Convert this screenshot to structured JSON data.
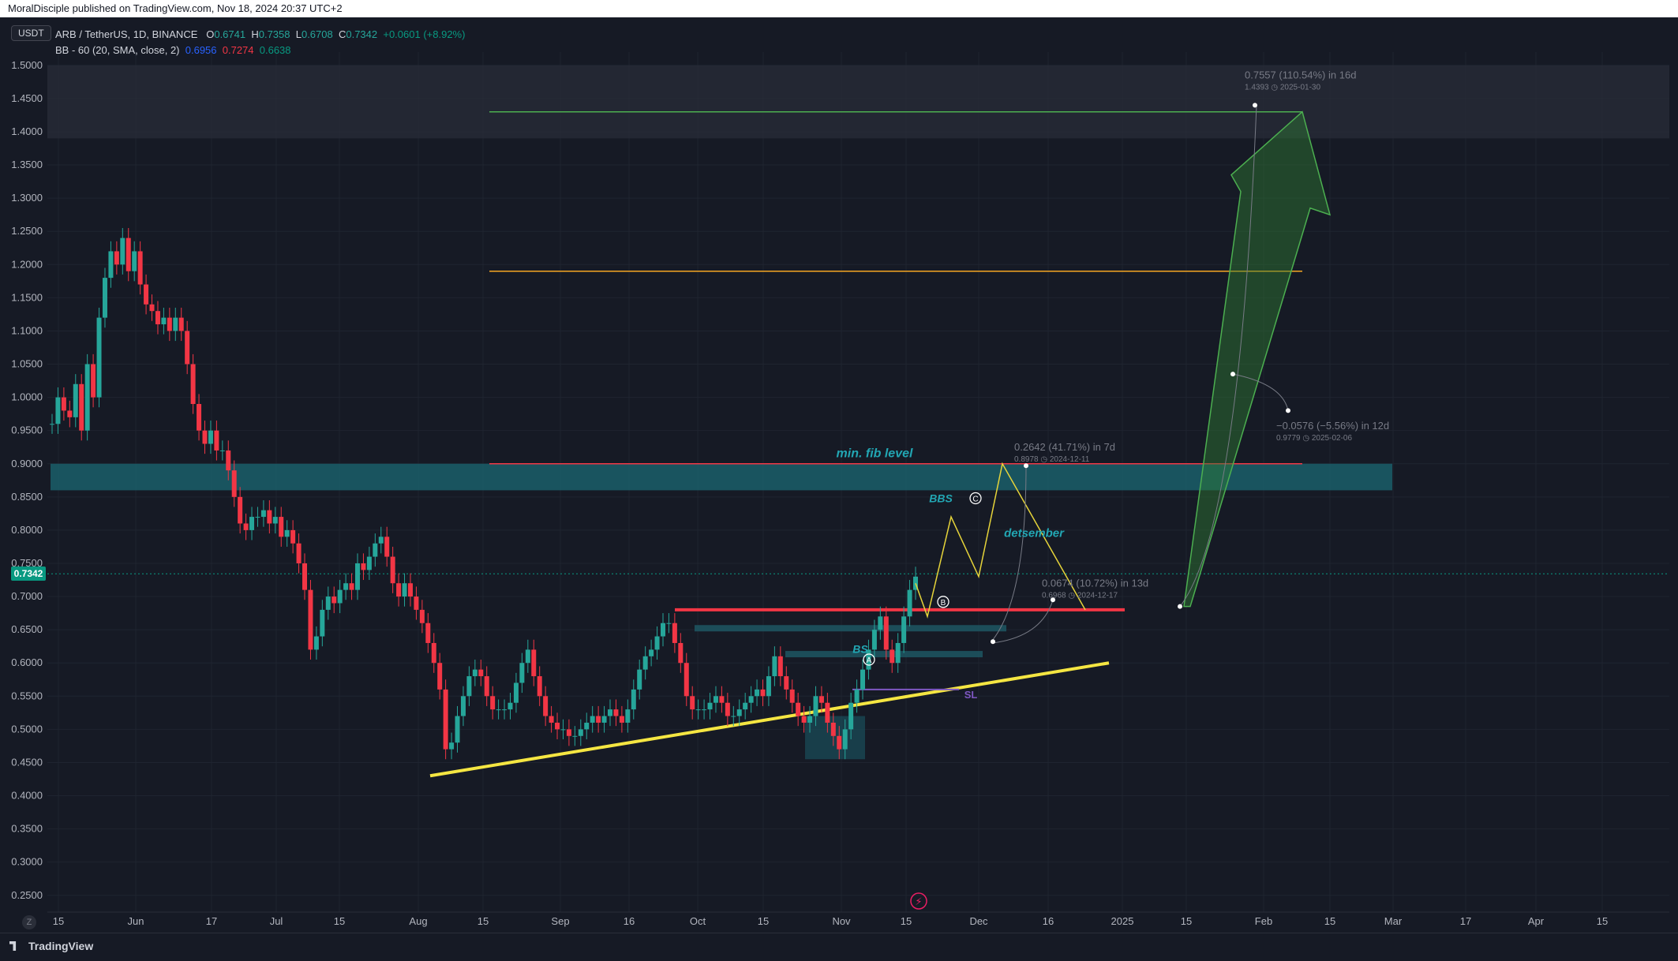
{
  "header": {
    "published": "MoralDisciple published on TradingView.com, Nov 18, 2024 20:37 UTC+2"
  },
  "currency_button": "USDT",
  "legend": {
    "symbol": "ARB / TetherUS, 1D, BINANCE",
    "o_label": "O",
    "o": "0.6741",
    "h_label": "H",
    "h": "0.7358",
    "l_label": "L",
    "l": "0.6708",
    "c_label": "C",
    "c": "0.7342",
    "change": "+0.0601 (+8.92%)",
    "bb_label": "BB - 60 (20, SMA, close, 2)",
    "bb_basis": "0.6956",
    "bb_upper": "0.7274",
    "bb_lower": "0.6638"
  },
  "current_price": "0.7342",
  "footer": {
    "brand": "TradingView",
    "z_label": "Z"
  },
  "colors": {
    "bg": "#161a25",
    "up": "#26a69a",
    "down": "#f23645",
    "fib_zone": "#1a5f6a",
    "yellow": "#f5e642",
    "green_arrow": "#4caf50"
  },
  "chart_data": {
    "type": "candlestick",
    "y_ticks": [
      "1.5000",
      "1.4500",
      "1.4000",
      "1.3500",
      "1.3000",
      "1.2500",
      "1.2000",
      "1.1500",
      "1.1000",
      "1.0500",
      "1.0000",
      "0.9500",
      "0.9000",
      "0.8500",
      "0.8000",
      "0.7500",
      "0.7000",
      "0.6500",
      "0.6000",
      "0.5500",
      "0.5000",
      "0.4500",
      "0.4000",
      "0.3500",
      "0.3000",
      "0.2500"
    ],
    "ylim": [
      0.22,
      1.52
    ],
    "x_ticks": [
      "15",
      "Jun",
      "17",
      "Jul",
      "15",
      "Aug",
      "15",
      "Sep",
      "16",
      "Oct",
      "15",
      "Nov",
      "15",
      "Dec",
      "16",
      "2025",
      "15",
      "Feb",
      "15",
      "Mar",
      "17",
      "Apr",
      "15"
    ],
    "price_path": [
      [
        0.96,
        1.0,
        0.98,
        0.97,
        1.02,
        0.95,
        1.05,
        1.0,
        1.12,
        1.18,
        1.22,
        1.2,
        1.24,
        1.19,
        1.22,
        1.17,
        1.14,
        1.13,
        1.11,
        1.12,
        1.1,
        1.12,
        1.1,
        1.05,
        0.99,
        0.95,
        0.93,
        0.95,
        0.92,
        0.92,
        0.89,
        0.85,
        0.81,
        0.8,
        0.82,
        0.82,
        0.83,
        0.81,
        0.82,
        0.79,
        0.8,
        0.78,
        0.75,
        0.71,
        0.62,
        0.64,
        0.68,
        0.7,
        0.69,
        0.71,
        0.72,
        0.71,
        0.75,
        0.74,
        0.76,
        0.78,
        0.79,
        0.76,
        0.72,
        0.7,
        0.72,
        0.7,
        0.68,
        0.66,
        0.63,
        0.6,
        0.56,
        0.47,
        0.48,
        0.52,
        0.55,
        0.58,
        0.59,
        0.58,
        0.55,
        0.53,
        0.53,
        0.53,
        0.54,
        0.57,
        0.6,
        0.62,
        0.58,
        0.55,
        0.52,
        0.51,
        0.5,
        0.5,
        0.49,
        0.49,
        0.5,
        0.51,
        0.52,
        0.51,
        0.52,
        0.53,
        0.52,
        0.51,
        0.53,
        0.56,
        0.59,
        0.61,
        0.62,
        0.64,
        0.66,
        0.66,
        0.63,
        0.6,
        0.55,
        0.53,
        0.53,
        0.53,
        0.54,
        0.55,
        0.54,
        0.52,
        0.52,
        0.53,
        0.54,
        0.55,
        0.56,
        0.55,
        0.58,
        0.61,
        0.58,
        0.56,
        0.54,
        0.52,
        0.51,
        0.52,
        0.55,
        0.54,
        0.51,
        0.49,
        0.47,
        0.5,
        0.54,
        0.56,
        0.59,
        0.62,
        0.65,
        0.67,
        0.62,
        0.6,
        0.63,
        0.67,
        0.71,
        0.73
      ]
    ],
    "horizontal_levels": [
      {
        "price": 1.43,
        "color": "#4caf50"
      },
      {
        "price": 1.19,
        "color": "#f5a623"
      },
      {
        "price": 0.9,
        "color": "#f23645"
      },
      {
        "price": 0.68,
        "color": "#f23645"
      }
    ],
    "annotations": [
      {
        "text": "min. fib level",
        "color": "#22a6b3"
      },
      {
        "text": "BBS",
        "color": "#22a6b3"
      },
      {
        "text": "detsember",
        "color": "#22a6b3"
      },
      {
        "text": "BS",
        "color": "#22a6b3"
      },
      {
        "text": "SL",
        "color": "#7e57c2"
      },
      {
        "text": "A"
      },
      {
        "text": "B"
      },
      {
        "text": "C"
      }
    ],
    "measurements": [
      {
        "line1": "0.7557 (110.54%) in 16d",
        "line2": "1.4393",
        "date": "2025-01-30"
      },
      {
        "line1": "0.2642 (41.71%) in 7d",
        "line2": "0.8978",
        "date": "2024-12-11"
      },
      {
        "line1": "0.0674 (10.72%) in 13d",
        "line2": "0.6968",
        "date": "2024-12-17"
      },
      {
        "line1": "−0.0576 (−5.56%) in 12d",
        "line2": "0.9779",
        "date": "2025-02-06"
      }
    ]
  }
}
